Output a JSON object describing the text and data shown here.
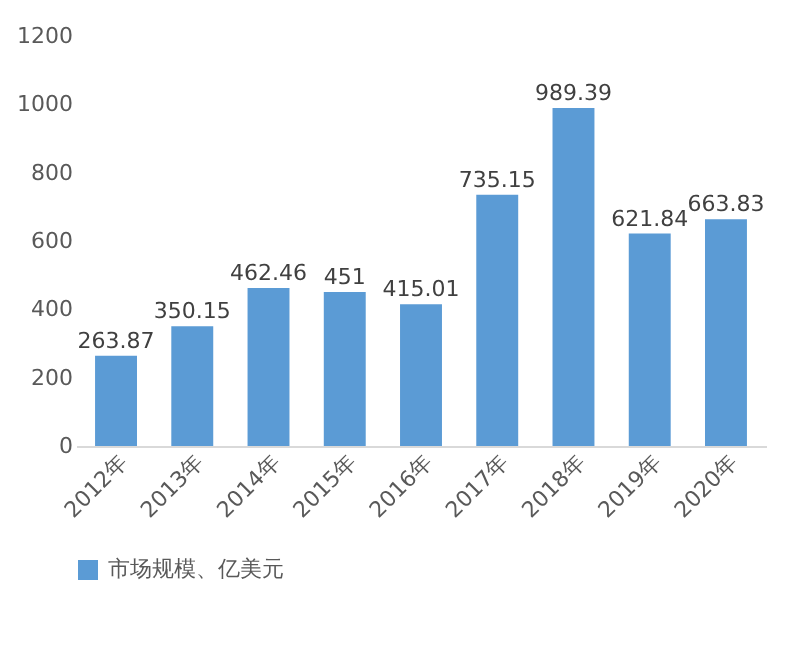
{
  "chart_data": {
    "type": "bar",
    "categories": [
      "2012年",
      "2013年",
      "2014年",
      "2015年",
      "2016年",
      "2017年",
      "2018年",
      "2019年",
      "2020年"
    ],
    "series": [
      {
        "name": "市场规模、亿美元",
        "color": "#5b9bd5",
        "values": [
          263.87,
          350.15,
          462.46,
          451,
          415.01,
          735.15,
          989.39,
          621.84,
          663.83
        ]
      }
    ],
    "ylim": [
      0,
      1200
    ],
    "yticks": [
      0,
      200,
      400,
      600,
      800,
      1000,
      1200
    ],
    "data_labels": true,
    "legend": "bottom",
    "grid": false
  }
}
